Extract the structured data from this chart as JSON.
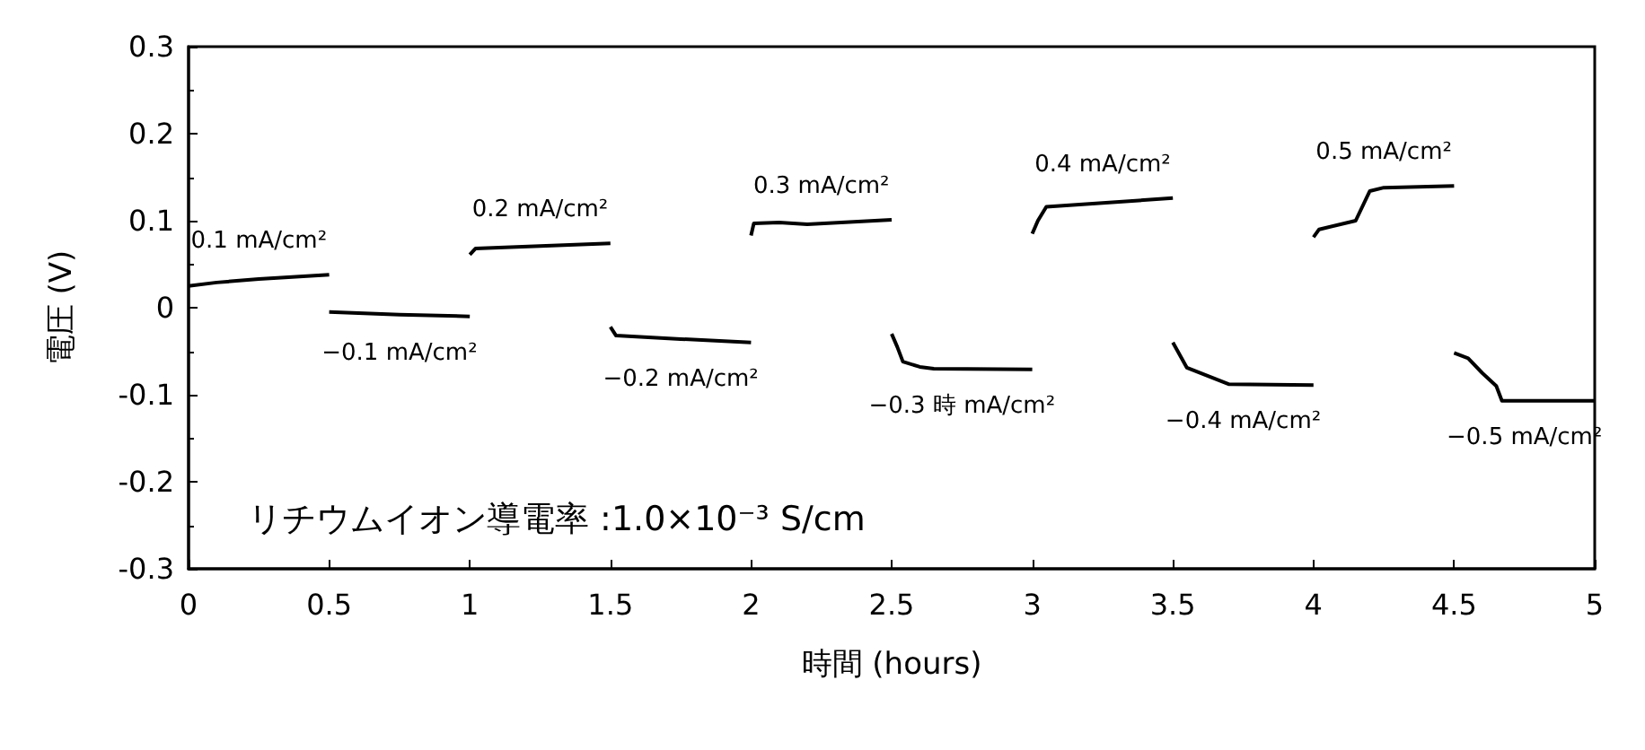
{
  "chart_data": {
    "type": "line",
    "xlabel": "時間 (hours)",
    "ylabel": "電圧 (V)",
    "xlim": [
      0,
      5
    ],
    "xticks": [
      0,
      0.5,
      1,
      1.5,
      2,
      2.5,
      3,
      3.5,
      4,
      4.5,
      5
    ],
    "ylim": [
      -0.3,
      0.3
    ],
    "yticks": [
      -0.3,
      -0.2,
      -0.1,
      0,
      0.1,
      0.2,
      0.3
    ],
    "grid": false,
    "marker": "none",
    "line_style": "solid",
    "series": [
      {
        "color": "#000000",
        "x": [
          0,
          0.1,
          0.25,
          0.5
        ],
        "values": [
          0.025,
          0.029,
          0.033,
          0.038
        ]
      },
      {
        "color": "#000000",
        "x": [
          0.5,
          0.75,
          1
        ],
        "values": [
          -0.005,
          -0.008,
          -0.01
        ]
      },
      {
        "color": "#000000",
        "x": [
          1,
          1.02,
          1.25,
          1.5
        ],
        "values": [
          0.061,
          0.068,
          0.071,
          0.074
        ]
      },
      {
        "color": "#000000",
        "x": [
          1.5,
          1.52,
          1.75,
          2
        ],
        "values": [
          -0.022,
          -0.032,
          -0.036,
          -0.04
        ]
      },
      {
        "color": "#000000",
        "x": [
          2,
          2.01,
          2.1,
          2.2,
          2.5
        ],
        "values": [
          0.083,
          0.097,
          0.098,
          0.096,
          0.101
        ]
      },
      {
        "color": "#000000",
        "x": [
          2.5,
          2.52,
          2.54,
          2.6,
          2.65,
          3
        ],
        "values": [
          -0.03,
          -0.045,
          -0.062,
          -0.068,
          -0.07,
          -0.071
        ]
      },
      {
        "color": "#000000",
        "x": [
          3,
          3.02,
          3.05,
          3.5
        ],
        "values": [
          0.085,
          0.1,
          0.116,
          0.126
        ]
      },
      {
        "color": "#000000",
        "x": [
          3.5,
          3.55,
          3.7,
          4
        ],
        "values": [
          -0.04,
          -0.069,
          -0.088,
          -0.089
        ]
      },
      {
        "color": "#000000",
        "x": [
          4,
          4.02,
          4.15,
          4.2,
          4.25,
          4.5
        ],
        "values": [
          0.081,
          0.09,
          0.1,
          0.134,
          0.138,
          0.14
        ]
      },
      {
        "color": "#000000",
        "x": [
          4.5,
          4.55,
          4.6,
          4.65,
          4.67,
          5
        ],
        "values": [
          -0.052,
          -0.058,
          -0.075,
          -0.09,
          -0.107,
          -0.107
        ]
      }
    ],
    "annotations": [
      "0.1 mA/cm²",
      "−0.1 mA/cm²",
      "0.2 mA/cm²",
      "−0.2 mA/cm²",
      "0.3 mA/cm²",
      "−0.3 時 mA/cm²",
      "0.4 mA/cm²",
      "−0.4 mA/cm²",
      "0.5 mA/cm²",
      "−0.5 mA/cm²",
      "リチウムイオン導電率 :1.0×10⁻³ S/cm"
    ]
  }
}
